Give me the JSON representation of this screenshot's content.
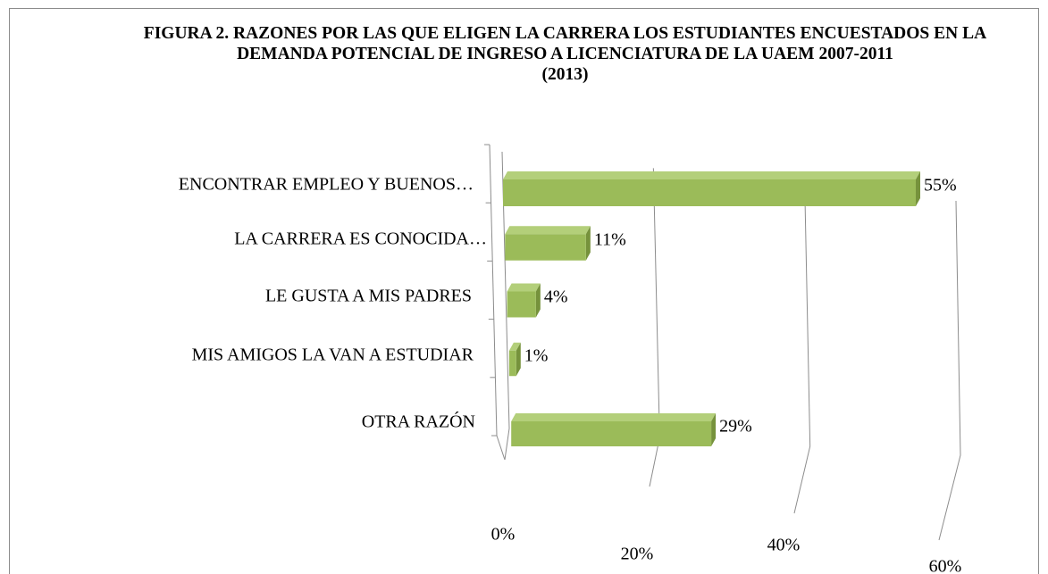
{
  "chart_data": {
    "type": "bar",
    "orientation": "horizontal",
    "title": "FIGURA 2. RAZONES POR LAS QUE ELIGEN LA CARRERA LOS ESTUDIANTES ENCUESTADOS EN LA DEMANDA POTENCIAL DE INGRESO A LICENCIATURA DE LA UAEM 2007-2011",
    "subtitle": "(2013)",
    "categories": [
      "ENCONTRAR EMPLEO Y BUENOS…",
      "LA CARRERA ES CONOCIDA…",
      "LE GUSTA A MIS PADRES",
      "MIS AMIGOS LA VAN A ESTUDIAR",
      "OTRA RAZÓN"
    ],
    "values": [
      55,
      11,
      4,
      1,
      29
    ],
    "value_labels": [
      "55%",
      "11%",
      "4%",
      "1%",
      "29%"
    ],
    "color": "#9bbb59",
    "xlim": [
      0,
      60
    ],
    "xticks": [
      {
        "value": 0,
        "label": "0%"
      },
      {
        "value": 20,
        "label": "20%"
      },
      {
        "value": 40,
        "label": "40%"
      },
      {
        "value": 60,
        "label": "60%"
      }
    ],
    "grid": true
  }
}
